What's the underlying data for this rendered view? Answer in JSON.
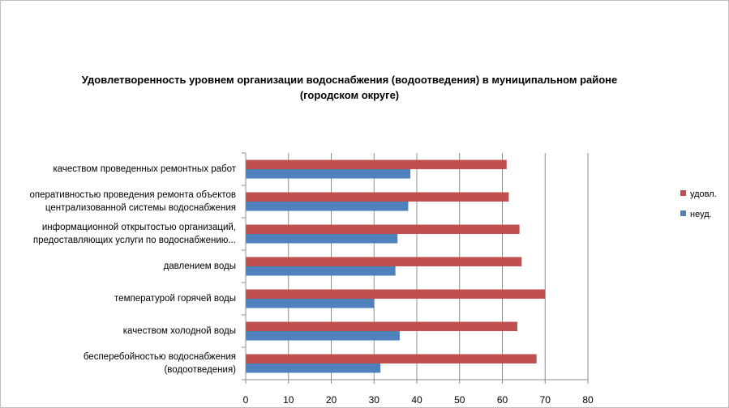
{
  "chart_data": {
    "type": "bar",
    "orientation": "horizontal",
    "title": "Удовлетворенность уровнем организации водоснабжения (водоотведения) в муниципальном районе (городском округе)",
    "title_lines": [
      "Удовлетворенность уровнем организации водоснабжения (водоотведения) в муниципальном районе",
      "(городском округе)"
    ],
    "categories": [
      [
        "качеством  проведенных  ремонтных работ"
      ],
      [
        "оперативностью  проведения  ремонта объектов",
        "централизованной системы водоснабжения"
      ],
      [
        "информационной открытостью организаций,",
        "предоставляющих услуги по водоснабжению..."
      ],
      [
        "давлением  воды"
      ],
      [
        "температурой  горячей воды"
      ],
      [
        "качеством  холодной воды"
      ],
      [
        "бесперебойностью  водоснабжения",
        "(водоотведения)"
      ]
    ],
    "series": [
      {
        "name": "удовл.",
        "color": "#c0504d",
        "values": [
          61,
          61.5,
          64,
          64.5,
          70,
          63.5,
          68
        ]
      },
      {
        "name": "неуд.",
        "color": "#4f81bd",
        "values": [
          38.5,
          38,
          35.5,
          35,
          30,
          36,
          31.5
        ]
      }
    ],
    "xlim": [
      0,
      80
    ],
    "xticks": [
      "0",
      "10",
      "20",
      "30",
      "40",
      "50",
      "60",
      "70",
      "80"
    ],
    "grid": true,
    "legend_position": "right",
    "legend": [
      "удовл.",
      "неуд."
    ]
  }
}
